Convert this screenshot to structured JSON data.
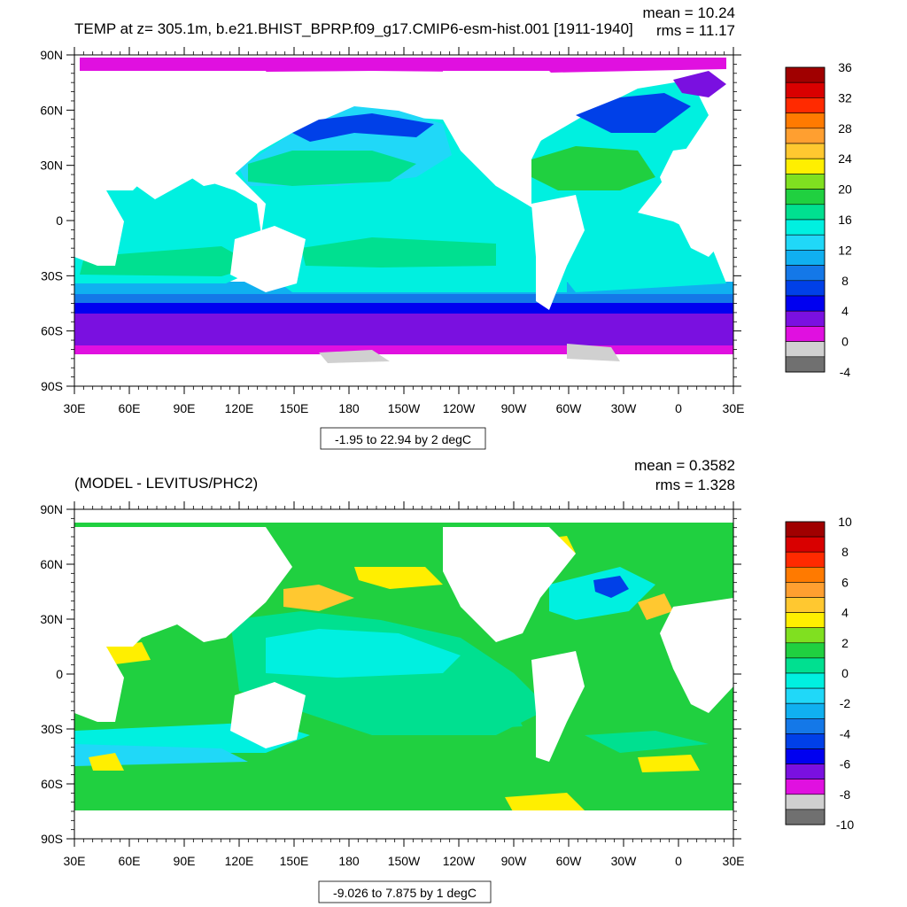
{
  "panels": [
    {
      "id": "top",
      "title": "TEMP at z= 305.1m, b.e21.BHIST_BPRP.f09_g17.CMIP6-esm-hist.001 [1911-1940]",
      "stats": [
        "mean = 10.24",
        "rms = 11.17"
      ],
      "range_label": "-1.95 to 22.94 by 2 degC",
      "colorbar": {
        "labels": [
          "36",
          "32",
          "28",
          "24",
          "20",
          "16",
          "12",
          "8",
          "4",
          "0",
          "-4"
        ],
        "colors": [
          "#a00000",
          "#d90000",
          "#ff2a00",
          "#ff7a00",
          "#ff9f30",
          "#ffc830",
          "#ffef00",
          "#80e020",
          "#20d040",
          "#00e090",
          "#00f0e0",
          "#20d8f8",
          "#10b0f0",
          "#1478e8",
          "#0040e8",
          "#0000f0",
          "#7a10e0",
          "#e010e0",
          "#d0d0d0",
          "#707070"
        ]
      }
    },
    {
      "id": "bottom",
      "title": "(MODEL - LEVITUS/PHC2)",
      "stats": [
        "mean = 0.3582",
        "rms = 1.328"
      ],
      "range_label": "-9.026 to 7.875 by 1 degC",
      "colorbar": {
        "labels": [
          "10",
          "8",
          "6",
          "4",
          "2",
          "0",
          "-2",
          "-4",
          "-6",
          "-8",
          "-10"
        ],
        "colors": [
          "#a00000",
          "#d90000",
          "#ff2a00",
          "#ff7a00",
          "#ff9f30",
          "#ffc830",
          "#ffef00",
          "#80e020",
          "#20d040",
          "#00e090",
          "#00f0e0",
          "#20d8f8",
          "#10b0f0",
          "#1478e8",
          "#0040e8",
          "#0000f0",
          "#7a10e0",
          "#e010e0",
          "#d0d0d0",
          "#707070"
        ]
      }
    }
  ],
  "axes": {
    "lat_labels": [
      "90N",
      "60N",
      "30N",
      "0",
      "30S",
      "60S",
      "90S"
    ],
    "lon_labels": [
      "30E",
      "60E",
      "90E",
      "120E",
      "150E",
      "180",
      "150W",
      "120W",
      "90W",
      "60W",
      "30W",
      "0",
      "30E"
    ]
  },
  "colors": {
    "land": "#ffffff",
    "frame": "#000000"
  }
}
